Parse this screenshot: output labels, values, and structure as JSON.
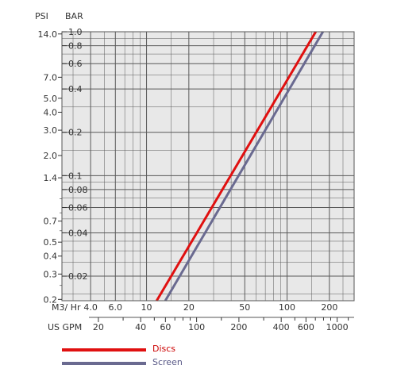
{
  "chart_data": {
    "type": "line",
    "axes": {
      "psi": {
        "title": "PSI",
        "scale": "log",
        "tick_labels": [
          "14.0",
          "7.0",
          "5.0",
          "4.0",
          "3.0",
          "2.0",
          "1.4",
          "0.7",
          "0.5",
          "0.4",
          "0.3",
          "0.2"
        ],
        "tick_values": [
          14.0,
          7.0,
          5.0,
          4.0,
          3.0,
          2.0,
          1.4,
          0.7,
          0.5,
          0.4,
          0.3,
          0.2
        ]
      },
      "bar": {
        "title": "BAR",
        "scale": "log",
        "range": [
          0.0135,
          1.0
        ],
        "tick_labels": [
          "1.0",
          "0.8",
          "0.6",
          "0.4",
          "0.2",
          "0.1",
          "0.08",
          "0.06",
          "0.04",
          "0.02"
        ],
        "tick_values": [
          1.0,
          0.8,
          0.6,
          0.4,
          0.2,
          0.1,
          0.08,
          0.06,
          0.04,
          0.02
        ]
      },
      "m3hr": {
        "title": "M3/ Hr",
        "scale": "log",
        "range": [
          2.5,
          300
        ],
        "tick_labels": [
          "4.0",
          "6.0",
          "10",
          "20",
          "50",
          "100",
          "200"
        ],
        "tick_values": [
          4,
          6,
          10,
          20,
          50,
          100,
          200
        ]
      },
      "usgpm": {
        "title": "US GPM",
        "scale": "log",
        "tick_labels": [
          "20",
          "40",
          "60",
          "100",
          "200",
          "400",
          "600",
          "1000"
        ],
        "tick_values": [
          20,
          40,
          60,
          100,
          200,
          400,
          600,
          1000
        ]
      }
    },
    "grid": true,
    "series": [
      {
        "name": "Discs",
        "color": "#e01010",
        "x_flow_m3hr": [
          11.8,
          160
        ],
        "y_pressure_bar": [
          0.0135,
          1.0
        ]
      },
      {
        "name": "Screen",
        "color": "#6a6a90",
        "x_flow_m3hr": [
          13.6,
          180
        ],
        "y_pressure_bar": [
          0.0135,
          1.0
        ]
      }
    ],
    "legend_position": "bottom-left"
  }
}
